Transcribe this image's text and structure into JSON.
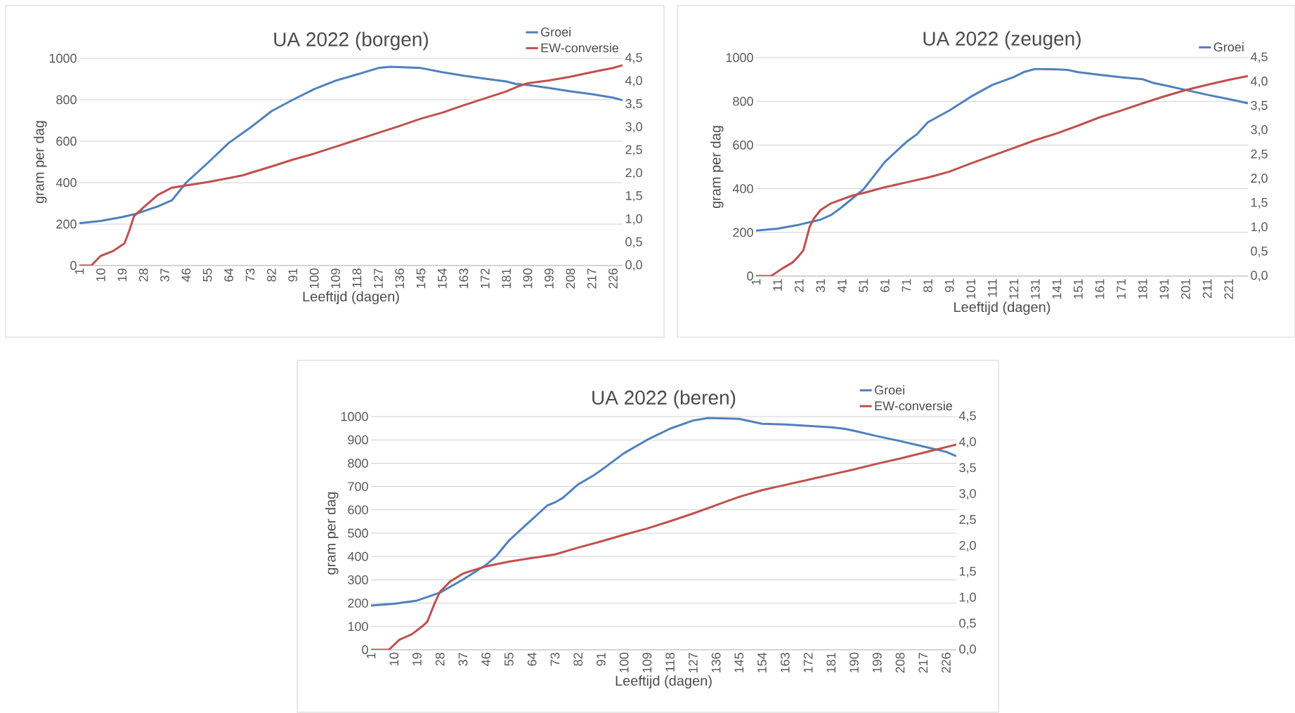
{
  "chart_data": [
    {
      "type": "line",
      "title": "UA 2022 (borgen)",
      "xlabel": "Leeftijd (dagen)",
      "ylabel": "gram per dag",
      "xlim": [
        1,
        230
      ],
      "xticks": [
        1,
        10,
        19,
        28,
        37,
        46,
        55,
        64,
        73,
        82,
        91,
        100,
        109,
        118,
        127,
        136,
        145,
        154,
        163,
        172,
        181,
        190,
        199,
        208,
        217,
        226
      ],
      "ylim": [
        0,
        1000
      ],
      "yticks": [
        0,
        200,
        400,
        600,
        800,
        1000
      ],
      "y2lim": [
        0,
        4.5
      ],
      "y2ticks": [
        {
          "value": 0,
          "label": "0,0"
        },
        {
          "value": 0.5,
          "label": "0,5"
        },
        {
          "value": 1,
          "label": "1,0"
        },
        {
          "value": 1.5,
          "label": "1,5"
        },
        {
          "value": 2,
          "label": "2,0"
        },
        {
          "value": 2.5,
          "label": "2,5"
        },
        {
          "value": 3,
          "label": "3,0"
        },
        {
          "value": 3.5,
          "label": "3,5"
        },
        {
          "value": 4,
          "label": "4,0"
        },
        {
          "value": 4.5,
          "label": "4,5"
        }
      ],
      "grid": "y",
      "legend": "top right",
      "series": [
        {
          "name": "Groei",
          "color": "#4f81bd",
          "x": [
            1,
            10,
            19,
            25,
            34,
            40,
            46,
            55,
            64,
            73,
            82,
            91,
            100,
            109,
            118,
            127,
            132,
            145,
            154,
            163,
            172,
            181,
            185,
            190,
            199,
            208,
            217,
            226,
            230
          ],
          "values": [
            204,
            215,
            234,
            250,
            285,
            315,
            400,
            494,
            592,
            665,
            745,
            800,
            851,
            892,
            922,
            953,
            959,
            953,
            933,
            916,
            902,
            888,
            876,
            871,
            857,
            841,
            827,
            810,
            798
          ]
        },
        {
          "name": "EW-conversie",
          "axis": "y2",
          "color": "#c0504d",
          "x": [
            1,
            6,
            10,
            15,
            20,
            22,
            24,
            28,
            34,
            40,
            46,
            55,
            64,
            70,
            73,
            82,
            91,
            100,
            109,
            118,
            127,
            136,
            145,
            154,
            163,
            172,
            181,
            186,
            190,
            199,
            208,
            217,
            226,
            230
          ],
          "values": [
            0,
            0,
            0.21,
            0.31,
            0.48,
            0.75,
            1.07,
            1.26,
            1.53,
            1.69,
            1.74,
            1.81,
            1.9,
            1.96,
            2.01,
            2.15,
            2.3,
            2.43,
            2.58,
            2.73,
            2.88,
            3.03,
            3.19,
            3.32,
            3.48,
            3.63,
            3.78,
            3.89,
            3.96,
            4.02,
            4.1,
            4.2,
            4.29,
            4.35
          ]
        }
      ]
    },
    {
      "type": "line",
      "title": "UA 2022 (zeugen)",
      "xlabel": "Leeftijd (dagen)",
      "ylabel": "gram per dag",
      "xlim": [
        1,
        230
      ],
      "xticks": [
        1,
        11,
        21,
        31,
        41,
        51,
        61,
        71,
        81,
        91,
        101,
        111,
        121,
        131,
        141,
        151,
        161,
        171,
        181,
        191,
        201,
        211,
        221
      ],
      "ylim": [
        0,
        1000
      ],
      "yticks": [
        0,
        200,
        400,
        600,
        800,
        1000
      ],
      "y2lim": [
        0,
        4.5
      ],
      "y2ticks": [
        {
          "value": 0,
          "label": "0,0"
        },
        {
          "value": 0.5,
          "label": "0,5"
        },
        {
          "value": 1,
          "label": "1,0"
        },
        {
          "value": 1.5,
          "label": "1,5"
        },
        {
          "value": 2,
          "label": "2,0"
        },
        {
          "value": 2.5,
          "label": "2,5"
        },
        {
          "value": 3,
          "label": "3,0"
        },
        {
          "value": 3.5,
          "label": "3,5"
        },
        {
          "value": 4,
          "label": "4,0"
        },
        {
          "value": 4.5,
          "label": "4,5"
        }
      ],
      "grid": "y",
      "legend": "top right",
      "series": [
        {
          "name": "Groei",
          "color": "#4f81bd",
          "x": [
            1,
            11,
            21,
            31,
            36,
            41,
            51,
            61,
            71,
            76,
            81,
            91,
            101,
            111,
            121,
            126,
            131,
            141,
            146,
            151,
            161,
            171,
            181,
            186,
            191,
            201,
            211,
            221,
            230
          ],
          "values": [
            208,
            217,
            235,
            258,
            280,
            316,
            397,
            523,
            614,
            650,
            704,
            758,
            821,
            875,
            911,
            935,
            948,
            946,
            944,
            933,
            921,
            910,
            901,
            884,
            874,
            852,
            830,
            810,
            791
          ]
        },
        {
          "axis": "y2",
          "color": "#c0504d",
          "x": [
            1,
            8,
            13,
            18,
            21,
            23,
            26,
            28,
            31,
            36,
            41,
            46,
            51,
            61,
            71,
            81,
            91,
            101,
            111,
            121,
            131,
            141,
            151,
            161,
            171,
            181,
            191,
            201,
            211,
            221,
            230
          ],
          "values": [
            0,
            0,
            0.15,
            0.28,
            0.42,
            0.53,
            1.02,
            1.19,
            1.36,
            1.5,
            1.58,
            1.66,
            1.71,
            1.83,
            1.93,
            2.03,
            2.15,
            2.32,
            2.48,
            2.64,
            2.8,
            2.94,
            3.1,
            3.27,
            3.41,
            3.56,
            3.7,
            3.83,
            3.94,
            4.04,
            4.12
          ]
        }
      ]
    },
    {
      "type": "line",
      "title": "UA 2022 (beren)",
      "xlabel": "Leeftijd (dagen)",
      "ylabel": "gram per dag",
      "xlim": [
        1,
        230
      ],
      "xticks": [
        1,
        10,
        19,
        28,
        37,
        46,
        55,
        64,
        73,
        82,
        91,
        100,
        109,
        118,
        127,
        136,
        145,
        154,
        163,
        172,
        181,
        190,
        199,
        208,
        217,
        226
      ],
      "ylim": [
        0,
        1000
      ],
      "yticks": [
        0,
        100,
        200,
        300,
        400,
        500,
        600,
        700,
        800,
        900,
        1000
      ],
      "y2lim": [
        0,
        4.5
      ],
      "y2ticks": [
        {
          "value": 0,
          "label": "0,0"
        },
        {
          "value": 0.5,
          "label": "0,5"
        },
        {
          "value": 1,
          "label": "1,0"
        },
        {
          "value": 1.5,
          "label": "1,5"
        },
        {
          "value": 2,
          "label": "2,0"
        },
        {
          "value": 2.5,
          "label": "2,5"
        },
        {
          "value": 3,
          "label": "3,0"
        },
        {
          "value": 3.5,
          "label": "3,5"
        },
        {
          "value": 4,
          "label": "4,0"
        },
        {
          "value": 4.5,
          "label": "4,5"
        }
      ],
      "grid": "y",
      "legend": "top right",
      "series": [
        {
          "name": "Groei",
          "color": "#4f81bd",
          "x": [
            1,
            10,
            19,
            28,
            37,
            46,
            50,
            55,
            64,
            70,
            73,
            76,
            82,
            88,
            91,
            100,
            109,
            118,
            127,
            133,
            145,
            154,
            163,
            172,
            181,
            186,
            190,
            199,
            208,
            217,
            226,
            230
          ],
          "values": [
            190,
            197,
            211,
            245,
            301,
            364,
            402,
            469,
            559,
            619,
            632,
            651,
            709,
            747,
            770,
            843,
            900,
            948,
            983,
            994,
            990,
            969,
            966,
            960,
            954,
            948,
            939,
            916,
            895,
            872,
            849,
            830
          ]
        },
        {
          "name": "EW-conversie",
          "axis": "y2",
          "color": "#c0504d",
          "x": [
            1,
            8,
            12,
            17,
            21,
            23,
            26,
            28,
            32,
            37,
            42,
            46,
            55,
            64,
            73,
            82,
            91,
            100,
            109,
            118,
            127,
            136,
            145,
            154,
            163,
            172,
            181,
            190,
            199,
            208,
            217,
            226,
            230
          ],
          "values": [
            0,
            0,
            0.19,
            0.3,
            0.45,
            0.54,
            0.91,
            1.12,
            1.32,
            1.47,
            1.55,
            1.61,
            1.7,
            1.77,
            1.84,
            1.97,
            2.09,
            2.22,
            2.34,
            2.48,
            2.63,
            2.79,
            2.95,
            3.08,
            3.18,
            3.28,
            3.38,
            3.48,
            3.59,
            3.69,
            3.8,
            3.91,
            3.96
          ]
        }
      ]
    }
  ]
}
